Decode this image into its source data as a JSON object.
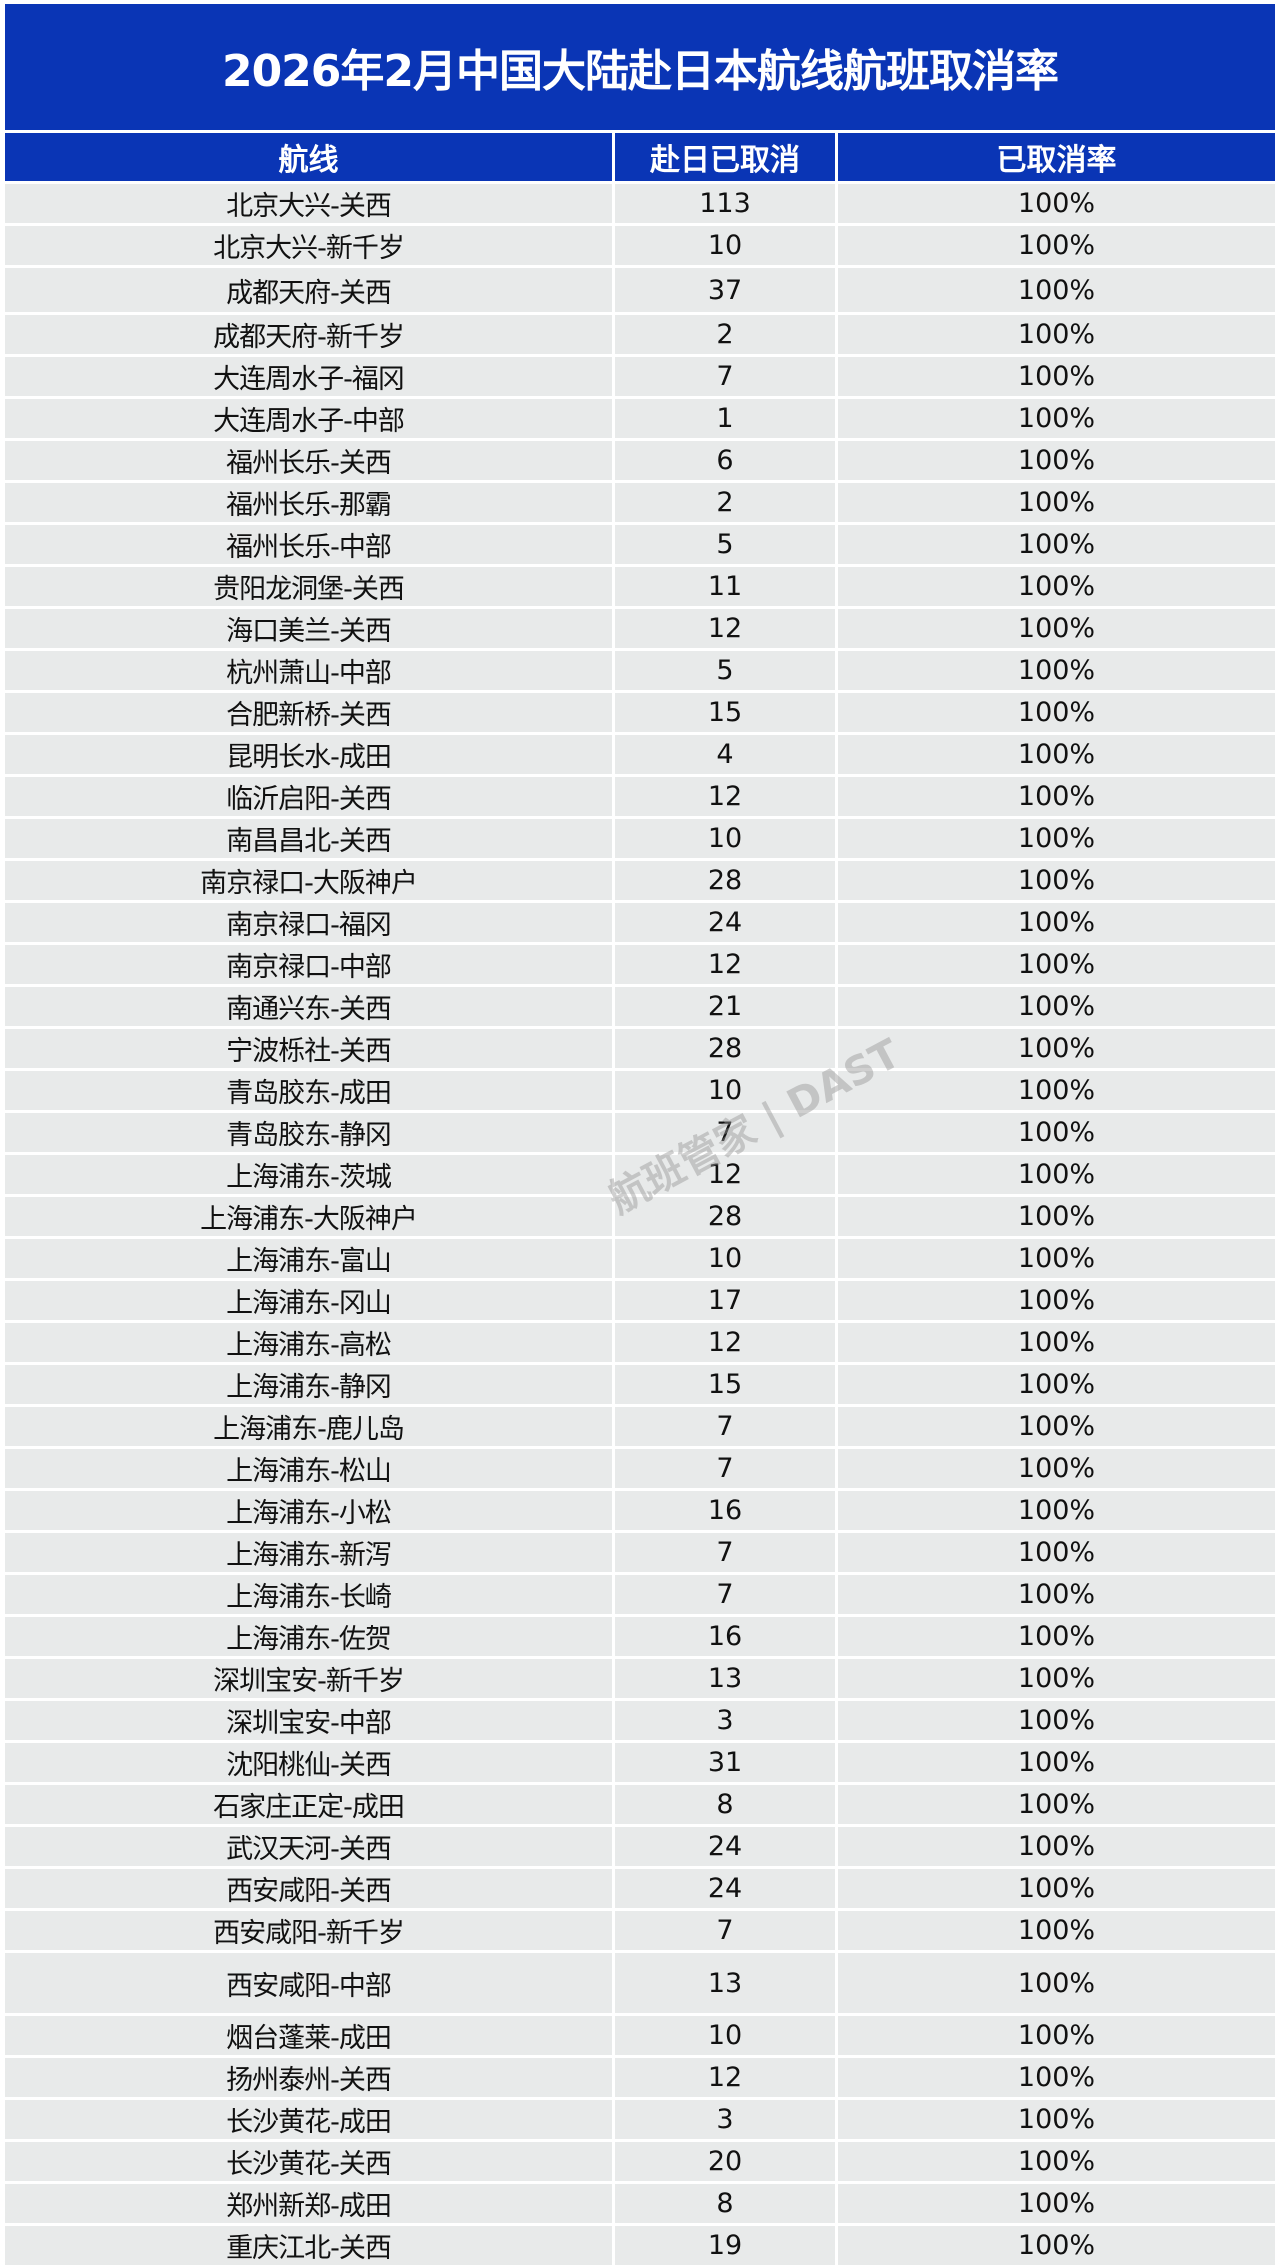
{
  "title": "2026年2月中国大陆赴日本航线航班取消率",
  "headers": [
    "航线",
    "赴日已取消",
    "已取消率"
  ],
  "rows": [
    [
      "北京大兴-关西",
      "113",
      "100%"
    ],
    [
      "北京大兴-新千岁",
      "10",
      "100%"
    ],
    [
      "成都天府-关西",
      "37",
      "100%"
    ],
    [
      "成都天府-新千岁",
      "2",
      "100%"
    ],
    [
      "大连周水子-福冈",
      "7",
      "100%"
    ],
    [
      "大连周水子-中部",
      "1",
      "100%"
    ],
    [
      "福州长乐-关西",
      "6",
      "100%"
    ],
    [
      "福州长乐-那霸",
      "2",
      "100%"
    ],
    [
      "福州长乐-中部",
      "5",
      "100%"
    ],
    [
      "贵阳龙洞堡-关西",
      "11",
      "100%"
    ],
    [
      "海口美兰-关西",
      "12",
      "100%"
    ],
    [
      "杭州萧山-中部",
      "5",
      "100%"
    ],
    [
      "合肥新桥-关西",
      "15",
      "100%"
    ],
    [
      "昆明长水-成田",
      "4",
      "100%"
    ],
    [
      "临沂启阳-关西",
      "12",
      "100%"
    ],
    [
      "南昌昌北-关西",
      "10",
      "100%"
    ],
    [
      "南京禄口-大阪神户",
      "28",
      "100%"
    ],
    [
      "南京禄口-福冈",
      "24",
      "100%"
    ],
    [
      "南京禄口-中部",
      "12",
      "100%"
    ],
    [
      "南通兴东-关西",
      "21",
      "100%"
    ],
    [
      "宁波栎社-关西",
      "28",
      "100%"
    ],
    [
      "青岛胶东-成田",
      "10",
      "100%"
    ],
    [
      "青岛胶东-静冈",
      "7",
      "100%"
    ],
    [
      "上海浦东-茨城",
      "12",
      "100%"
    ],
    [
      "上海浦东-大阪神户",
      "28",
      "100%"
    ],
    [
      "上海浦东-富山",
      "10",
      "100%"
    ],
    [
      "上海浦东-冈山",
      "17",
      "100%"
    ],
    [
      "上海浦东-高松",
      "12",
      "100%"
    ],
    [
      "上海浦东-静冈",
      "15",
      "100%"
    ],
    [
      "上海浦东-鹿儿岛",
      "7",
      "100%"
    ],
    [
      "上海浦东-松山",
      "7",
      "100%"
    ],
    [
      "上海浦东-小松",
      "16",
      "100%"
    ],
    [
      "上海浦东-新泻",
      "7",
      "100%"
    ],
    [
      "上海浦东-长崎",
      "7",
      "100%"
    ],
    [
      "上海浦东-佐贺",
      "16",
      "100%"
    ],
    [
      "深圳宝安-新千岁",
      "13",
      "100%"
    ],
    [
      "深圳宝安-中部",
      "3",
      "100%"
    ],
    [
      "沈阳桃仙-关西",
      "31",
      "100%"
    ],
    [
      "石家庄正定-成田",
      "8",
      "100%"
    ],
    [
      "武汉天河-关西",
      "24",
      "100%"
    ],
    [
      "西安咸阳-关西",
      "24",
      "100%"
    ],
    [
      "西安咸阳-新千岁",
      "7",
      "100%"
    ],
    [
      "西安咸阳-中部",
      "13",
      "100%"
    ],
    [
      "烟台蓬莱-成田",
      "10",
      "100%"
    ],
    [
      "扬州泰州-关西",
      "12",
      "100%"
    ],
    [
      "长沙黄花-成田",
      "3",
      "100%"
    ],
    [
      "长沙黄花-关西",
      "20",
      "100%"
    ],
    [
      "郑州新郑-成田",
      "8",
      "100%"
    ],
    [
      "重庆江北-关西",
      "19",
      "100%"
    ]
  ],
  "watermark": "航班管家 | DAST",
  "colors": {
    "header_bg": "#0a35b5",
    "row_bg": "#e8eaea"
  }
}
